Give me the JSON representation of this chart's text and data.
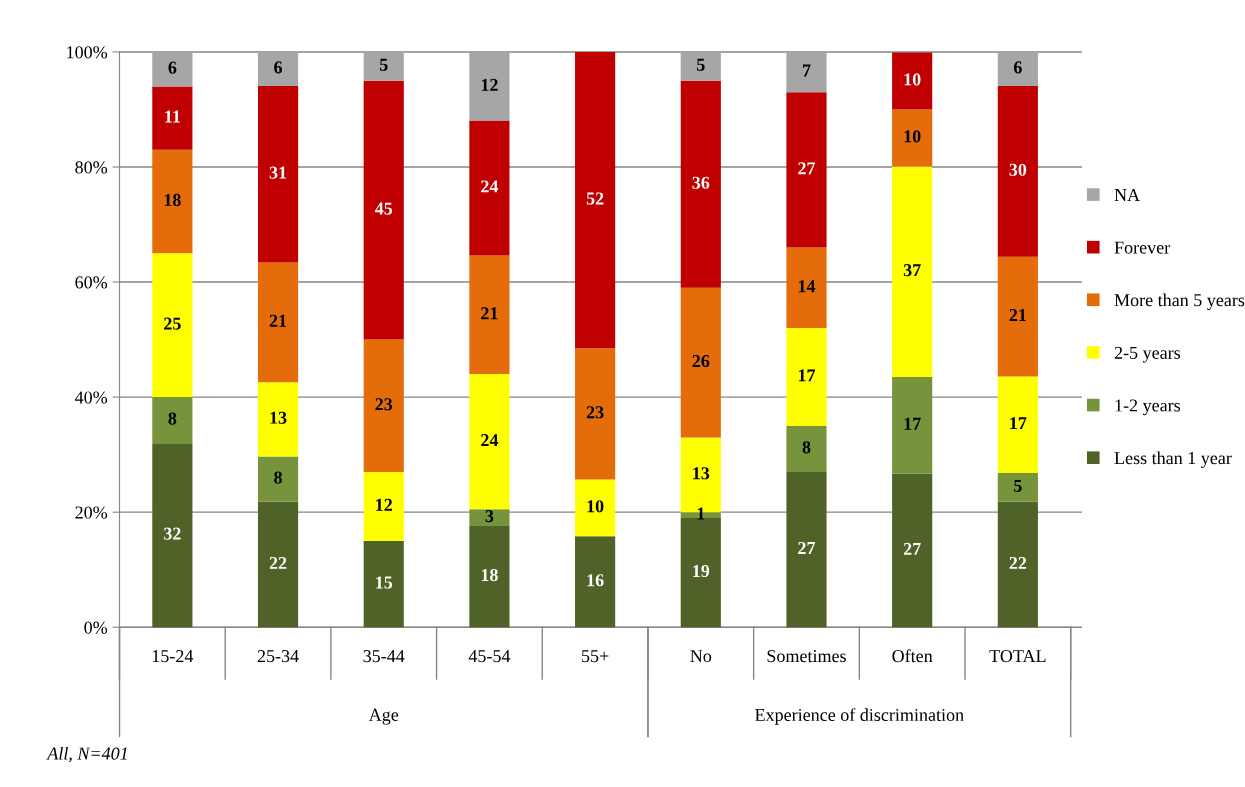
{
  "chart_data": {
    "type": "bar",
    "stacked": true,
    "categories": [
      "15-24",
      "25-34",
      "35-44",
      "45-54",
      "55+",
      "No",
      "Sometimes",
      "Often",
      "TOTAL"
    ],
    "series": [
      {
        "name": "Less than 1 year",
        "color": "#4f6228",
        "values": [
          32,
          21.8,
          15,
          17.6,
          15.8,
          19,
          27,
          26.7,
          21.8
        ],
        "value_labels": [
          "32",
          "22",
          "15",
          "18",
          "16",
          "19",
          "27",
          "27",
          "22"
        ]
      },
      {
        "name": "1-2 years",
        "color": "#77933c",
        "values": [
          8,
          7.9,
          null,
          2.9,
          null,
          1,
          8,
          16.8,
          5.0
        ],
        "value_labels": [
          "8",
          "8",
          null,
          "3",
          null,
          "1",
          "8",
          "17",
          "5"
        ]
      },
      {
        "name": "2-5 years",
        "color": "#ffff00",
        "values": [
          25,
          12.9,
          12,
          23.5,
          9.9,
          13,
          17,
          36.6,
          16.8
        ],
        "value_labels": [
          "25",
          "13",
          "12",
          "24",
          "10",
          "13",
          "17",
          "37",
          "17"
        ]
      },
      {
        "name": "More than 5 years",
        "color": "#e46c0a",
        "values": [
          18,
          20.8,
          23,
          20.6,
          22.8,
          26,
          14,
          9.9,
          20.8
        ],
        "value_labels": [
          "18",
          "21",
          "23",
          "21",
          "23",
          "26",
          "14",
          "10",
          "21"
        ]
      },
      {
        "name": "Forever",
        "color": "#c00000",
        "values": [
          11,
          30.7,
          45,
          23.5,
          51.5,
          36,
          27,
          9.9,
          29.7
        ],
        "value_labels": [
          "11",
          "31",
          "45",
          "24",
          "52",
          "36",
          "27",
          "10",
          "30"
        ]
      },
      {
        "name": "NA",
        "color": "#a6a6a6",
        "values": [
          6,
          5.9,
          5,
          11.8,
          null,
          5,
          7,
          null,
          5.9
        ],
        "value_labels": [
          "6",
          "6",
          "5",
          "12",
          null,
          "5",
          "7",
          null,
          "6"
        ]
      }
    ],
    "ylim": [
      0,
      100
    ],
    "yticks": [
      {
        "value": 0,
        "label": "0%"
      },
      {
        "value": 20,
        "label": "20%"
      },
      {
        "value": 40,
        "label": "40%"
      },
      {
        "value": 60,
        "label": "60%"
      },
      {
        "value": 80,
        "label": "80%"
      },
      {
        "value": 100,
        "label": "100%"
      }
    ],
    "grid": "y",
    "legend": "right",
    "annotations": [
      "Age",
      "Experience of discrimination",
      "All, N=401"
    ]
  }
}
